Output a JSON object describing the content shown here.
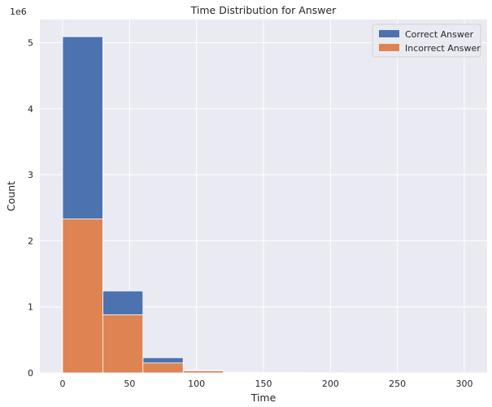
{
  "chart_data": {
    "type": "bar",
    "title": "Time Distribution for Answer",
    "xlabel": "Time",
    "ylabel": "Count",
    "y_scale_label": "1e6",
    "xlim": [
      -17,
      317
    ],
    "ylim": [
      0,
      5.35
    ],
    "xticks": [
      0,
      50,
      100,
      150,
      200,
      250,
      300
    ],
    "yticks": [
      0,
      1,
      2,
      3,
      4,
      5
    ],
    "grid": true,
    "legend_position": "top-right",
    "bins": [
      [
        0,
        30
      ],
      [
        30,
        60
      ],
      [
        60,
        90
      ],
      [
        90,
        120
      ],
      [
        120,
        150
      ],
      [
        150,
        180
      ],
      [
        180,
        210
      ],
      [
        210,
        240
      ],
      [
        240,
        270
      ],
      [
        270,
        300
      ]
    ],
    "stacked": false,
    "series": [
      {
        "name": "Correct Answer",
        "color": "#4c72b0",
        "values": [
          5.09,
          1.24,
          0.23,
          0.04,
          0.01,
          0.005,
          0.002,
          0.001,
          0.0005,
          0.0003
        ]
      },
      {
        "name": "Incorrect Answer",
        "color": "#dd8452",
        "values": [
          2.33,
          0.88,
          0.15,
          0.03,
          0.008,
          0.004,
          0.002,
          0.001,
          0.0005,
          0.0003
        ]
      }
    ]
  }
}
